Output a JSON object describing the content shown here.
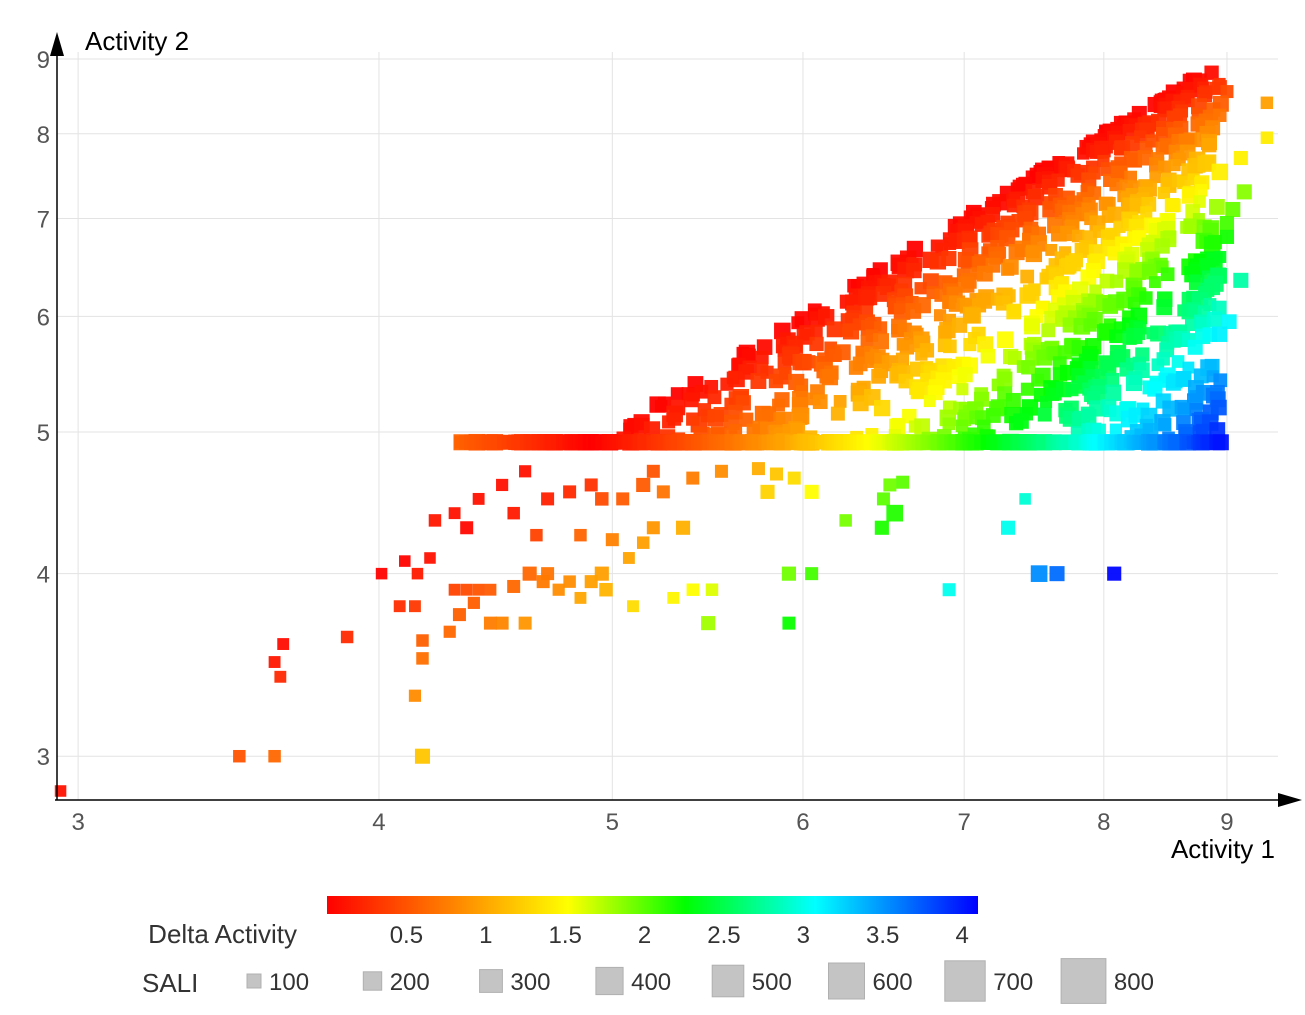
{
  "chart_data": {
    "type": "scatter",
    "xlabel": "Activity 1",
    "ylabel": "Activity 2",
    "xscale": "log",
    "yscale": "log",
    "xlim": [
      2.94,
      9.45
    ],
    "ylim": [
      2.8,
      9.1
    ],
    "xticks": [
      "3",
      "4",
      "5",
      "6",
      "7",
      "8",
      "9"
    ],
    "yticks": [
      "3",
      "4",
      "5",
      "6",
      "7",
      "8",
      "9"
    ],
    "grid": true,
    "color_legend": {
      "title": "Delta Activity",
      "ticks": [
        "0.5",
        "1",
        "1.5",
        "2",
        "2.5",
        "3",
        "3.5",
        "4"
      ],
      "range": [
        0,
        4.1
      ],
      "colors": [
        "#ff0000",
        "#ff8800",
        "#ffff00",
        "#00ff00",
        "#00ffff",
        "#0000ff"
      ]
    },
    "size_legend": {
      "title": "SALI",
      "values": [
        "100",
        "200",
        "300",
        "400",
        "500",
        "600",
        "700",
        "800"
      ]
    },
    "points": [
      [
        2.95,
        2.84,
        50
      ],
      [
        3.5,
        3.0,
        80
      ],
      [
        3.62,
        3.0,
        80
      ],
      [
        3.62,
        3.48,
        60
      ],
      [
        3.65,
        3.58,
        60
      ],
      [
        3.64,
        3.4,
        60
      ],
      [
        3.88,
        3.62,
        80
      ],
      [
        4.01,
        4.0,
        50
      ],
      [
        4.08,
        3.8,
        60
      ],
      [
        4.14,
        3.8,
        60
      ],
      [
        4.1,
        4.08,
        50
      ],
      [
        4.2,
        4.1,
        50
      ],
      [
        4.15,
        4.0,
        50
      ],
      [
        4.17,
        3.0,
        200
      ],
      [
        4.14,
        3.3,
        70
      ],
      [
        4.17,
        3.5,
        80
      ],
      [
        4.17,
        3.6,
        80
      ],
      [
        4.3,
        3.9,
        60
      ],
      [
        4.35,
        3.9,
        60
      ],
      [
        4.4,
        3.9,
        60
      ],
      [
        4.28,
        3.65,
        70
      ],
      [
        4.32,
        3.75,
        100
      ],
      [
        4.38,
        3.82,
        70
      ],
      [
        4.45,
        3.7,
        100
      ],
      [
        4.5,
        3.7,
        100
      ],
      [
        4.6,
        3.7,
        100
      ],
      [
        4.45,
        3.9,
        60
      ],
      [
        4.55,
        3.92,
        100
      ],
      [
        4.62,
        4.0,
        150
      ],
      [
        4.68,
        3.95,
        100
      ],
      [
        4.7,
        4.0,
        100
      ],
      [
        4.75,
        3.9,
        70
      ],
      [
        4.8,
        3.95,
        80
      ],
      [
        4.85,
        3.85,
        60
      ],
      [
        4.9,
        3.95,
        100
      ],
      [
        4.95,
        4.0,
        150
      ],
      [
        4.97,
        3.9,
        120
      ],
      [
        5.1,
        3.8,
        60
      ],
      [
        5.08,
        4.1,
        60
      ],
      [
        5.35,
        4.3,
        150
      ],
      [
        5.4,
        3.9,
        80
      ],
      [
        5.5,
        3.9,
        80
      ],
      [
        5.3,
        3.85,
        60
      ],
      [
        5.48,
        3.7,
        150
      ],
      [
        5.92,
        4.0,
        150
      ],
      [
        6.05,
        4.0,
        100
      ],
      [
        5.92,
        3.7,
        100
      ],
      [
        6.25,
        4.35,
        80
      ],
      [
        6.47,
        4.3,
        150
      ],
      [
        6.55,
        4.4,
        300
      ],
      [
        6.52,
        4.6,
        100
      ],
      [
        6.48,
        4.5,
        100
      ],
      [
        6.6,
        4.62,
        100
      ],
      [
        6.9,
        3.9,
        100
      ],
      [
        7.3,
        4.3,
        150
      ],
      [
        7.42,
        4.5,
        50
      ],
      [
        7.52,
        4.0,
        300
      ],
      [
        7.65,
        4.0,
        200
      ],
      [
        8.08,
        4.0,
        150
      ],
      [
        8.4,
        5.35,
        200
      ],
      [
        8.55,
        5.4,
        200
      ],
      [
        8.78,
        5.95,
        150
      ],
      [
        9.02,
        5.95,
        180
      ],
      [
        9.12,
        6.35,
        200
      ],
      [
        9.0,
        6.8,
        150
      ],
      [
        9.0,
        6.95,
        150
      ],
      [
        9.12,
        7.7,
        150
      ],
      [
        9.35,
        7.95,
        80
      ],
      [
        9.35,
        8.4,
        80
      ],
      [
        9.0,
        8.55,
        100
      ],
      [
        8.8,
        8.6,
        80
      ],
      [
        8.4,
        6.5,
        120
      ],
      [
        8.55,
        5.8,
        120
      ],
      [
        8.25,
        5.9,
        150
      ],
      [
        8.3,
        5.65,
        150
      ],
      [
        8.2,
        5.8,
        150
      ],
      [
        9.15,
        7.3,
        200
      ],
      [
        9.05,
        7.1,
        200
      ],
      [
        4.22,
        4.35,
        80
      ],
      [
        4.3,
        4.4,
        60
      ],
      [
        4.4,
        4.5,
        60
      ],
      [
        4.5,
        4.6,
        70
      ],
      [
        4.6,
        4.7,
        70
      ],
      [
        4.35,
        4.3,
        100
      ],
      [
        4.55,
        4.4,
        80
      ],
      [
        4.7,
        4.5,
        100
      ],
      [
        4.8,
        4.55,
        100
      ],
      [
        4.9,
        4.6,
        100
      ],
      [
        4.95,
        4.5,
        120
      ],
      [
        5.05,
        4.5,
        100
      ],
      [
        5.15,
        4.6,
        150
      ],
      [
        5.2,
        4.7,
        100
      ],
      [
        5.25,
        4.55,
        100
      ],
      [
        5.4,
        4.65,
        100
      ],
      [
        5.55,
        4.7,
        100
      ],
      [
        5.75,
        4.72,
        100
      ],
      [
        5.85,
        4.68,
        100
      ],
      [
        5.8,
        4.55,
        150
      ],
      [
        5.95,
        4.65,
        100
      ],
      [
        6.05,
        4.55,
        150
      ],
      [
        5.0,
        4.22,
        100
      ],
      [
        5.2,
        4.3,
        100
      ],
      [
        5.15,
        4.2,
        80
      ],
      [
        4.85,
        4.25,
        80
      ],
      [
        4.65,
        4.25,
        80
      ]
    ]
  }
}
